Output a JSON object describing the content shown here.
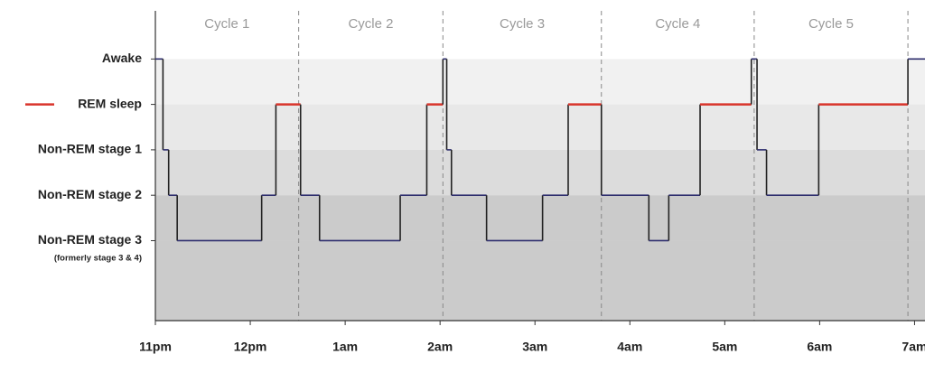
{
  "chart_data": {
    "type": "hypnogram",
    "x": [
      0,
      0.08,
      0.14,
      0.23,
      1.12,
      1.27,
      1.53,
      1.73,
      2.58,
      2.86,
      3.03,
      3.07,
      3.12,
      3.49,
      4.08,
      4.35,
      4.7,
      5.2,
      5.41,
      5.74,
      6.28,
      6.34,
      6.44,
      6.99,
      7.93
    ],
    "values": [
      4,
      2,
      1,
      0,
      1,
      3,
      1,
      0,
      1,
      3,
      4,
      2,
      1,
      0,
      1,
      3,
      1,
      0,
      1,
      3,
      4,
      2,
      1,
      3,
      4
    ],
    "color": "#2e2e6e",
    "highlight": {
      "value": 3,
      "color": "#d9342b"
    },
    "xlim": [
      0,
      8.11
    ],
    "xticks": [
      {
        "value": 0,
        "label": "11pm"
      },
      {
        "value": 1,
        "label": "12pm"
      },
      {
        "value": 2,
        "label": "1am"
      },
      {
        "value": 3,
        "label": "2am"
      },
      {
        "value": 4,
        "label": "3am"
      },
      {
        "value": 5,
        "label": "4am"
      },
      {
        "value": 6,
        "label": "5am"
      },
      {
        "value": 7,
        "label": "6am"
      },
      {
        "value": 8,
        "label": "7am"
      }
    ],
    "ylim": [
      -1.76,
      5.06
    ],
    "yticks": [
      {
        "value": 4,
        "label": "Awake"
      },
      {
        "value": 3,
        "label": "REM sleep"
      },
      {
        "value": 2,
        "label": "Non-REM stage 1"
      },
      {
        "value": 1,
        "label": "Non-REM stage 2"
      },
      {
        "value": 0,
        "label": "Non-REM stage 3"
      }
    ],
    "y_note": "(formerly stage 3 & 4)",
    "cycles": [
      {
        "label": "Cycle 1",
        "end": 1.51
      },
      {
        "label": "Cycle 2",
        "end": 3.03
      },
      {
        "label": "Cycle 3",
        "end": 4.7
      },
      {
        "label": "Cycle 4",
        "end": 6.31
      },
      {
        "label": "Cycle 5",
        "end": 7.93
      }
    ]
  }
}
